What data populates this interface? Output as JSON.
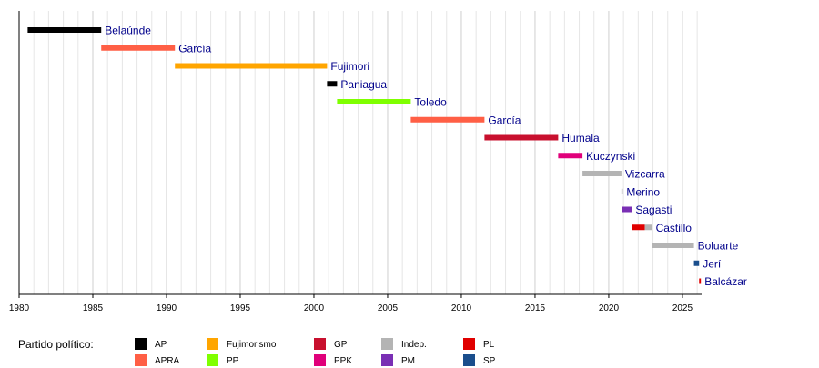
{
  "chart_data": {
    "type": "timeline",
    "xlim": [
      1980,
      2026.3
    ],
    "ticks": [
      1980,
      1985,
      1990,
      1995,
      2000,
      2005,
      2010,
      2015,
      2020,
      2025
    ],
    "grid": "vertical-yearly",
    "presidents": [
      {
        "name": "Belaúnde",
        "terms": [
          {
            "start": 1980.58,
            "end": 1985.57,
            "party": "AP"
          }
        ]
      },
      {
        "name": "García",
        "terms": [
          {
            "start": 1985.57,
            "end": 1990.57,
            "party": "APRA"
          }
        ]
      },
      {
        "name": "Fujimori",
        "terms": [
          {
            "start": 1990.57,
            "end": 2000.89,
            "party": "Fujimorismo"
          }
        ]
      },
      {
        "name": "Paniagua",
        "terms": [
          {
            "start": 2000.89,
            "end": 2001.57,
            "party": "AP"
          }
        ]
      },
      {
        "name": "Toledo",
        "terms": [
          {
            "start": 2001.57,
            "end": 2006.57,
            "party": "PP"
          }
        ]
      },
      {
        "name": "García",
        "terms": [
          {
            "start": 2006.57,
            "end": 2011.57,
            "party": "APRA"
          }
        ]
      },
      {
        "name": "Humala",
        "terms": [
          {
            "start": 2011.57,
            "end": 2016.57,
            "party": "GP"
          }
        ]
      },
      {
        "name": "Kuczynski",
        "terms": [
          {
            "start": 2016.57,
            "end": 2018.22,
            "party": "PPK"
          }
        ]
      },
      {
        "name": "Vizcarra",
        "terms": [
          {
            "start": 2018.22,
            "end": 2020.86,
            "party": "Indep."
          }
        ]
      },
      {
        "name": "Merino",
        "terms": [
          {
            "start": 2020.86,
            "end": 2020.88,
            "party": "Indep."
          }
        ]
      },
      {
        "name": "Sagasti",
        "terms": [
          {
            "start": 2020.88,
            "end": 2021.57,
            "party": "PM"
          }
        ]
      },
      {
        "name": "Castillo",
        "terms": [
          {
            "start": 2021.57,
            "end": 2022.45,
            "party": "PL"
          },
          {
            "start": 2022.45,
            "end": 2022.94,
            "party": "Indep."
          }
        ]
      },
      {
        "name": "Boluarte",
        "terms": [
          {
            "start": 2022.94,
            "end": 2025.78,
            "party": "Indep."
          }
        ]
      },
      {
        "name": "Jerí",
        "terms": [
          {
            "start": 2025.78,
            "end": 2026.13,
            "party": "SP"
          }
        ]
      },
      {
        "name": "Balcázar",
        "terms": [
          {
            "start": 2026.13,
            "end": 2026.25,
            "party": "PL"
          }
        ]
      }
    ],
    "legend": {
      "title": "Partido político:",
      "placement": "bottom-left",
      "items": [
        {
          "party": "AP",
          "color": "#000000"
        },
        {
          "party": "APRA",
          "color": "#ff5f45"
        },
        {
          "party": "Fujimorismo",
          "color": "#ffa500"
        },
        {
          "party": "PP",
          "color": "#7fff00"
        },
        {
          "party": "GP",
          "color": "#c8102e"
        },
        {
          "party": "PPK",
          "color": "#e0007a"
        },
        {
          "party": "Indep.",
          "color": "#b4b4b4"
        },
        {
          "party": "PM",
          "color": "#7a2fb4"
        },
        {
          "party": "PL",
          "color": "#e00000"
        },
        {
          "party": "SP",
          "color": "#1a4e8c"
        }
      ]
    }
  }
}
